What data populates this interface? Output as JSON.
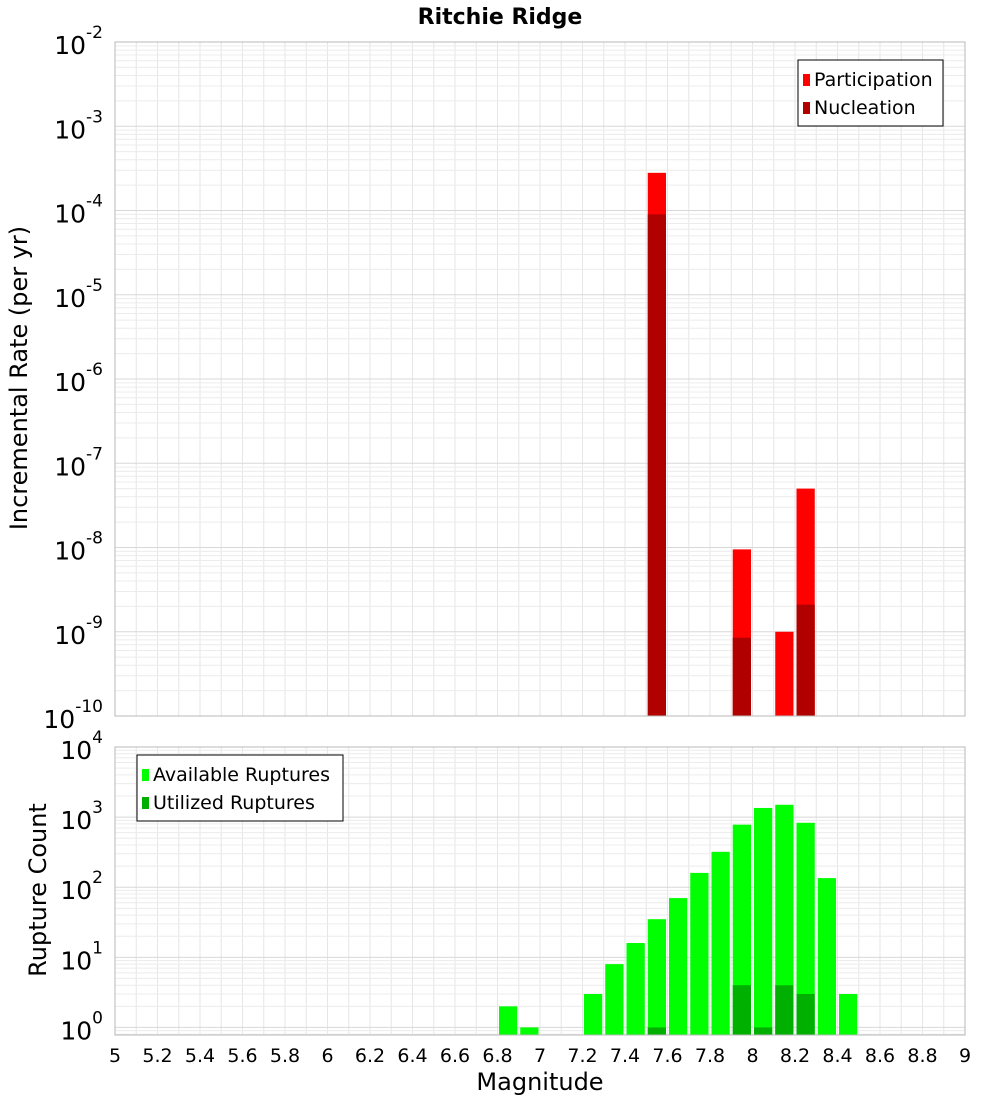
{
  "chart_data": [
    {
      "type": "bar",
      "title": "Ritchie Ridge",
      "xlabel": "",
      "ylabel": "Incremental Rate (per yr)",
      "y_scale": "log",
      "ylim": [
        1e-10,
        0.01
      ],
      "y_ticks": [
        {
          "base": "10",
          "exp": "-10"
        },
        {
          "base": "10",
          "exp": "-9"
        },
        {
          "base": "10",
          "exp": "-8"
        },
        {
          "base": "10",
          "exp": "-7"
        },
        {
          "base": "10",
          "exp": "-6"
        },
        {
          "base": "10",
          "exp": "-5"
        },
        {
          "base": "10",
          "exp": "-4"
        },
        {
          "base": "10",
          "exp": "-3"
        },
        {
          "base": "10",
          "exp": "-2"
        }
      ],
      "xlim": [
        5,
        9
      ],
      "grid": true,
      "legend_position": "top-right",
      "series": [
        {
          "name": "Participation",
          "color": "#ff0000",
          "points": [
            [
              7.55,
              0.00028
            ],
            [
              7.95,
              9.5e-09
            ],
            [
              8.15,
              1e-09
            ],
            [
              8.25,
              5e-08
            ]
          ]
        },
        {
          "name": "Nucleation",
          "color": "#b00000",
          "points": [
            [
              7.55,
              9e-05
            ],
            [
              7.95,
              8.5e-10
            ],
            [
              8.25,
              2.1e-09
            ]
          ]
        }
      ]
    },
    {
      "type": "bar",
      "title": "",
      "xlabel": "Magnitude",
      "ylabel": "Rupture Count",
      "y_scale": "log",
      "ylim": [
        0.78,
        10000
      ],
      "y_ticks": [
        {
          "base": "10",
          "exp": "0"
        },
        {
          "base": "10",
          "exp": "1"
        },
        {
          "base": "10",
          "exp": "2"
        },
        {
          "base": "10",
          "exp": "3"
        },
        {
          "base": "10",
          "exp": "4"
        }
      ],
      "xlim": [
        5,
        9
      ],
      "x_ticks": [
        "5",
        "5.2",
        "5.4",
        "5.6",
        "5.8",
        "6",
        "6.2",
        "6.4",
        "6.6",
        "6.8",
        "7",
        "7.2",
        "7.4",
        "7.6",
        "7.8",
        "8",
        "8.2",
        "8.4",
        "8.6",
        "8.8",
        "9"
      ],
      "grid": true,
      "legend_position": "top-left",
      "series": [
        {
          "name": "Available Ruptures",
          "color": "#00ff00",
          "points": [
            [
              6.85,
              2
            ],
            [
              6.95,
              1
            ],
            [
              7.25,
              3
            ],
            [
              7.35,
              8
            ],
            [
              7.45,
              16
            ],
            [
              7.55,
              35
            ],
            [
              7.65,
              70
            ],
            [
              7.75,
              160
            ],
            [
              7.85,
              320
            ],
            [
              7.95,
              780
            ],
            [
              8.05,
              1350
            ],
            [
              8.15,
              1500
            ],
            [
              8.25,
              830
            ],
            [
              8.35,
              135
            ],
            [
              8.45,
              3
            ]
          ]
        },
        {
          "name": "Utilized Ruptures",
          "color": "#00b000",
          "points": [
            [
              7.55,
              1
            ],
            [
              7.95,
              4
            ],
            [
              8.05,
              1
            ],
            [
              8.15,
              4
            ],
            [
              8.25,
              3
            ]
          ]
        }
      ]
    }
  ]
}
